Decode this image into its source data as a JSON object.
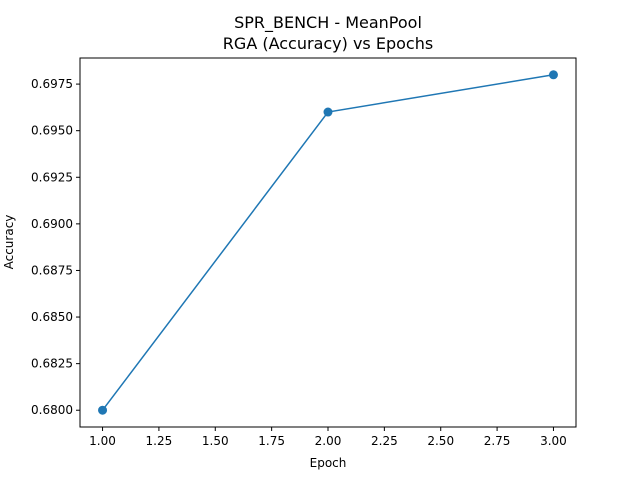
{
  "chart_data": {
    "type": "line",
    "title_line1": "SPR_BENCH - MeanPool",
    "title_line2": "RGA (Accuracy) vs Epochs",
    "xlabel": "Epoch",
    "ylabel": "Accuracy",
    "x": [
      1,
      2,
      3
    ],
    "series": [
      {
        "values": [
          0.68,
          0.696,
          0.698
        ]
      }
    ],
    "xlim": [
      0.9,
      3.1
    ],
    "ylim": [
      0.6791,
      0.6989
    ],
    "x_ticks": [
      1.0,
      1.25,
      1.5,
      1.75,
      2.0,
      2.25,
      2.5,
      2.75,
      3.0
    ],
    "x_tick_labels": [
      "1.00",
      "1.25",
      "1.50",
      "1.75",
      "2.00",
      "2.25",
      "2.50",
      "2.75",
      "3.00"
    ],
    "y_ticks": [
      0.68,
      0.6825,
      0.685,
      0.6875,
      0.69,
      0.6925,
      0.695,
      0.6975
    ],
    "y_tick_labels": [
      "0.6800",
      "0.6825",
      "0.6850",
      "0.6875",
      "0.6900",
      "0.6925",
      "0.6950",
      "0.6975"
    ],
    "grid": false,
    "line_color": "#1f77b4",
    "marker": "circle"
  }
}
